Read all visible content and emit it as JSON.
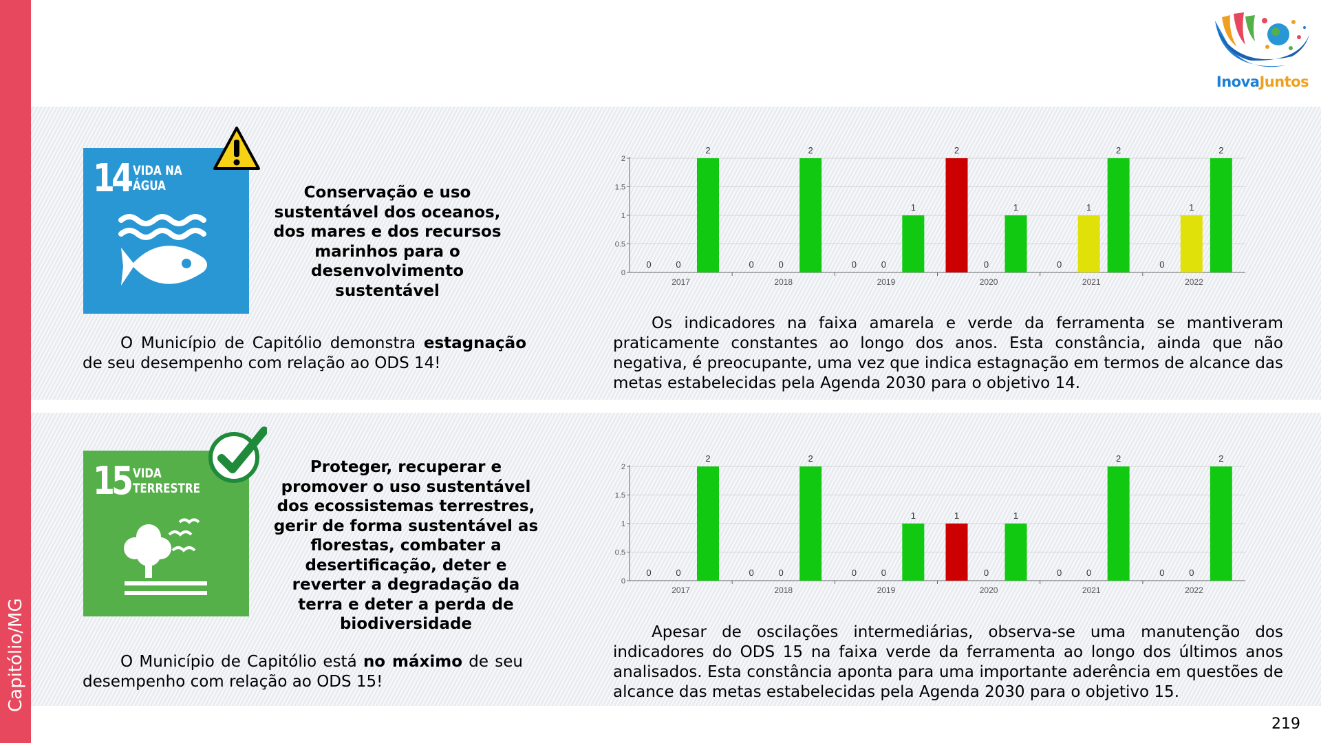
{
  "sidebar": {
    "label": "Capitólio/MG"
  },
  "logo": {
    "text_part1": "Inova",
    "text_part2": "Juntos"
  },
  "colors": {
    "sidebar": "#e8485e",
    "green": "#12c912",
    "red": "#cc0000",
    "yellow": "#e1e10a",
    "sdg14": "#2a97d5",
    "sdg15": "#56b04a"
  },
  "ods14": {
    "tile_number": "14",
    "tile_name": "VIDA NA\nÁGUA",
    "badge_icon": "warning-icon",
    "goal_title": "Conservação e uso sustentável dos oceanos, dos mares e dos recursos marinhos para o desenvolvimento sustentável",
    "status_pre": "O Município de Capitólio demonstra ",
    "status_bold": "estagnação",
    "status_post": " de seu desempenho com relação ao ODS 14!",
    "analysis": "Os indicadores na faixa amarela e verde da ferramenta se mantiveram praticamente constantes ao longo dos anos. Esta constância, ainda que não negativa, é preocupante, uma vez que indica estagnação em termos de alcance das metas estabelecidas pela Agenda 2030 para o objetivo 14."
  },
  "ods15": {
    "tile_number": "15",
    "tile_name": "VIDA\nTERRESTRE",
    "badge_icon": "checkmark-icon",
    "goal_title": "Proteger, recuperar e promover o uso sustentável dos ecossistemas terrestres, gerir de forma sustentável as florestas, combater a desertificação, deter e reverter a degradação da terra e deter a perda de biodiversidade",
    "status_pre": "O Município de Capitólio está ",
    "status_bold": "no máximo",
    "status_post": " de seu desempenho com relação ao ODS 15!",
    "analysis": "Apesar de oscilações intermediárias, observa-se uma manutenção dos indicadores do ODS 15 na faixa verde da ferramenta ao longo dos últimos anos analisados. Esta constância aponta para uma importante aderência em questões de alcance das metas estabelecidas pela Agenda 2030 para o objetivo 15."
  },
  "chart_data": [
    {
      "type": "bar",
      "categories": [
        "2017",
        "2018",
        "2019",
        "2020",
        "2021",
        "2022"
      ],
      "series": [
        {
          "values": [
            0,
            0,
            0,
            2,
            0,
            0
          ],
          "color": "red"
        },
        {
          "values": [
            0,
            0,
            0,
            0,
            1,
            1
          ],
          "color": "yellow"
        },
        {
          "values": [
            2,
            2,
            1,
            1,
            2,
            2
          ],
          "color": "green"
        }
      ],
      "bars": [
        [
          {
            "v": 0,
            "c": "red"
          },
          {
            "v": 0,
            "c": "yellow"
          },
          {
            "v": 2,
            "c": "green"
          }
        ],
        [
          {
            "v": 0,
            "c": "red"
          },
          {
            "v": 0,
            "c": "yellow"
          },
          {
            "v": 2,
            "c": "green"
          }
        ],
        [
          {
            "v": 0,
            "c": "red"
          },
          {
            "v": 0,
            "c": "yellow"
          },
          {
            "v": 1,
            "c": "green"
          }
        ],
        [
          {
            "v": 2,
            "c": "red"
          },
          {
            "v": 0,
            "c": "yellow"
          },
          {
            "v": 1,
            "c": "green"
          }
        ],
        [
          {
            "v": 0,
            "c": "red"
          },
          {
            "v": 1,
            "c": "yellow"
          },
          {
            "v": 2,
            "c": "green"
          }
        ],
        [
          {
            "v": 0,
            "c": "red"
          },
          {
            "v": 1,
            "c": "yellow"
          },
          {
            "v": 2,
            "c": "green"
          }
        ]
      ],
      "ylim": [
        0,
        2
      ],
      "yticks": [
        "0",
        "0.5",
        "1",
        "1.5",
        "2"
      ],
      "grid": true
    },
    {
      "type": "bar",
      "categories": [
        "2017",
        "2018",
        "2019",
        "2020",
        "2021",
        "2022"
      ],
      "series": [
        {
          "values": [
            0,
            0,
            0,
            1,
            0,
            0
          ],
          "color": "red"
        },
        {
          "values": [
            0,
            0,
            0,
            0,
            0,
            0
          ],
          "color": "yellow"
        },
        {
          "values": [
            2,
            2,
            1,
            1,
            2,
            2
          ],
          "color": "green"
        }
      ],
      "bars": [
        [
          {
            "v": 0,
            "c": "red"
          },
          {
            "v": 0,
            "c": "yellow"
          },
          {
            "v": 2,
            "c": "green"
          }
        ],
        [
          {
            "v": 0,
            "c": "red"
          },
          {
            "v": 0,
            "c": "yellow"
          },
          {
            "v": 2,
            "c": "green"
          }
        ],
        [
          {
            "v": 0,
            "c": "red"
          },
          {
            "v": 0,
            "c": "yellow"
          },
          {
            "v": 1,
            "c": "green"
          }
        ],
        [
          {
            "v": 1,
            "c": "red"
          },
          {
            "v": 0,
            "c": "yellow"
          },
          {
            "v": 1,
            "c": "green"
          }
        ],
        [
          {
            "v": 0,
            "c": "red"
          },
          {
            "v": 0,
            "c": "yellow"
          },
          {
            "v": 2,
            "c": "green"
          }
        ],
        [
          {
            "v": 0,
            "c": "red"
          },
          {
            "v": 0,
            "c": "yellow"
          },
          {
            "v": 2,
            "c": "green"
          }
        ]
      ],
      "ylim": [
        0,
        2
      ],
      "yticks": [
        "0",
        "0.5",
        "1",
        "1.5",
        "2"
      ],
      "grid": true
    }
  ],
  "page_number": "219"
}
